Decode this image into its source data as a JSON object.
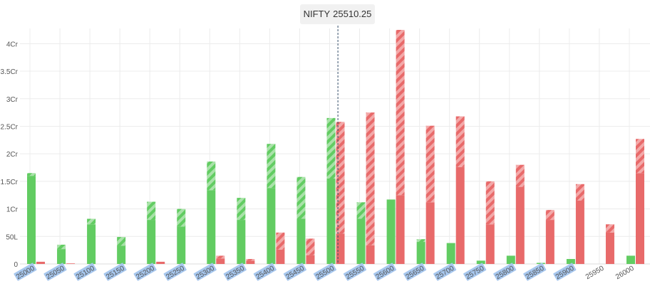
{
  "spot_indicator": {
    "symbol": "NIFTY",
    "price": "25510.25",
    "value": 25510.25
  },
  "colors": {
    "call": "#62cc62",
    "call_light": "#a9e2a9",
    "put": "#e86a6a",
    "put_light": "#f3a9a9",
    "label_highlight": "#a7c7ee",
    "grid": "#ececec",
    "axis_text": "#555555"
  },
  "chart_data": {
    "type": "bar",
    "title": "",
    "xlabel": "",
    "ylabel": "",
    "ylim": [
      0,
      4.25
    ],
    "yunit": "Cr",
    "y_ticks": [
      {
        "value": 0,
        "label": "0"
      },
      {
        "value": 0.5,
        "label": "50L"
      },
      {
        "value": 1,
        "label": "1Cr"
      },
      {
        "value": 1.5,
        "label": "1.5Cr"
      },
      {
        "value": 2,
        "label": "2Cr"
      },
      {
        "value": 2.5,
        "label": "2.5Cr"
      },
      {
        "value": 3,
        "label": "3Cr"
      },
      {
        "value": 3.5,
        "label": "3.5Cr"
      },
      {
        "value": 4,
        "label": "4Cr"
      }
    ],
    "grid": true,
    "categories": [
      "25000",
      "25050",
      "25100",
      "25150",
      "25200",
      "25250",
      "25300",
      "25350",
      "25400",
      "25450",
      "25500",
      "25550",
      "25600",
      "25650",
      "25700",
      "25750",
      "25800",
      "25850",
      "25900",
      "25950",
      "26000"
    ],
    "highlighted_categories": [
      "25000",
      "25050",
      "25100",
      "25150",
      "25200",
      "25250",
      "25300",
      "25350",
      "25400",
      "25450",
      "25500",
      "25550",
      "25600",
      "25650",
      "25700",
      "25750",
      "25800",
      "25850",
      "25900"
    ],
    "series": [
      {
        "key": "call_oi",
        "side": "call",
        "base": [
          1.6,
          0.27,
          0.72,
          0.33,
          0.8,
          0.68,
          1.34,
          0.8,
          1.38,
          0.82,
          1.55,
          0.82,
          1.17,
          0.4,
          0.38,
          0.06,
          0.15,
          0.02,
          0.09,
          0.0,
          0.15
        ],
        "change": [
          0.05,
          0.08,
          0.1,
          0.16,
          0.33,
          0.32,
          0.52,
          0.4,
          0.8,
          0.76,
          1.1,
          0.3,
          0.0,
          0.05,
          0.0,
          0.0,
          0.0,
          0.0,
          0.0,
          0.0,
          0.0
        ]
      },
      {
        "key": "put_oi",
        "side": "put",
        "base": [
          0.04,
          0.01,
          0.0,
          0.0,
          0.04,
          0.0,
          0.1,
          0.06,
          0.26,
          0.16,
          0.55,
          0.34,
          1.25,
          1.12,
          1.76,
          0.72,
          1.4,
          0.8,
          1.15,
          0.57,
          1.65
        ],
        "change": [
          0.0,
          0.0,
          0.0,
          0.0,
          0.0,
          0.0,
          0.05,
          0.03,
          0.31,
          0.3,
          2.03,
          2.41,
          3.0,
          1.39,
          0.92,
          0.78,
          0.4,
          0.18,
          0.3,
          0.15,
          0.62
        ]
      }
    ],
    "spot_marker": {
      "x": 25510.25
    }
  }
}
